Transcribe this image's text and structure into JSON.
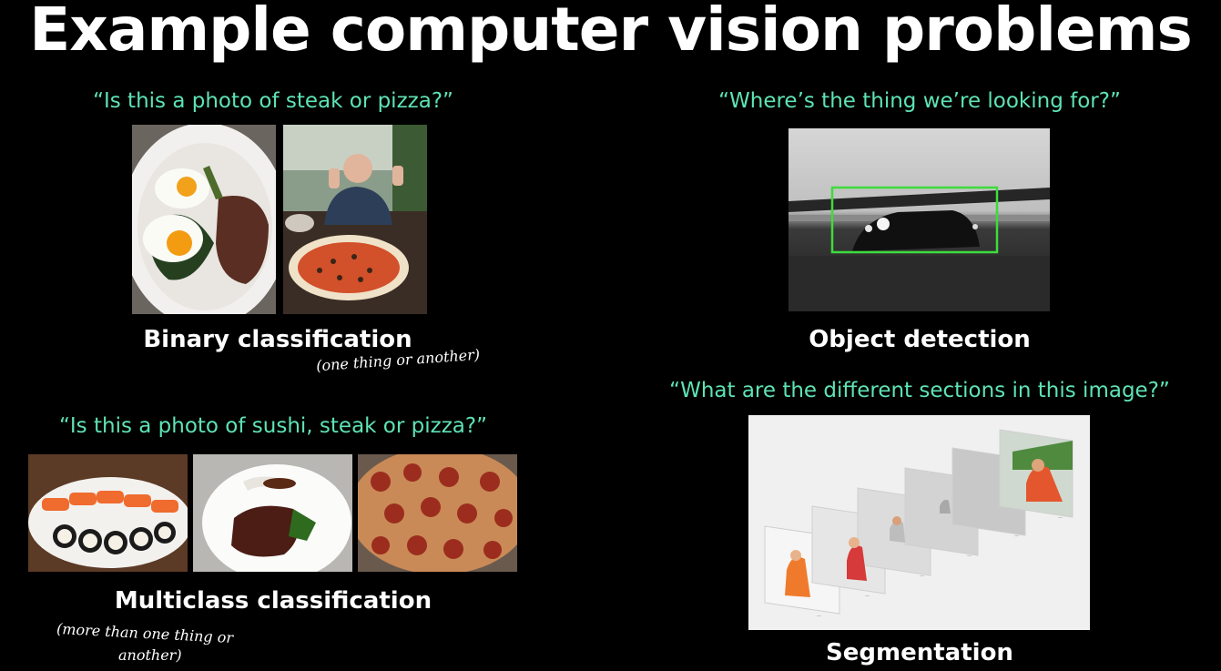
{
  "title": "Example computer vision problems",
  "binary": {
    "question": "“Is this a photo of steak or pizza?”",
    "label": "Binary classification",
    "note": "(one thing or another)"
  },
  "multiclass": {
    "question": "“Is this a photo of sushi, steak or pizza?”",
    "label": "Multiclass classification",
    "note_line1": "(more than one thing or",
    "note_line2": "another)"
  },
  "detection": {
    "question": "“Where’s the thing we’re looking for?”",
    "label": "Object detection"
  },
  "segmentation": {
    "question": "“What are the different sections in this image?”",
    "label": "Segmentation"
  },
  "colors": {
    "accent": "#5ee3b4",
    "box": "#3ddc3d",
    "background": "#000000"
  }
}
